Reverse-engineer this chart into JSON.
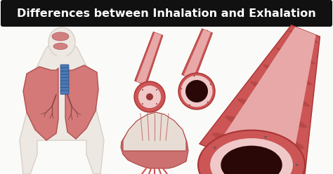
{
  "title": "Differences between Inhalation and Exhalation",
  "title_bg": "#111111",
  "title_color": "#ffffff",
  "title_fontsize": 11.5,
  "bg_color": "#f5f5f5",
  "body_outline": "#d8cfc8",
  "body_fill": "#ede8e2",
  "lung_fill": "#d47878",
  "lung_edge": "#b05050",
  "trachea_fill": "#4a7ab5",
  "trachea_edge": "#2a4a80",
  "tube_red": "#cc5555",
  "tube_dark_red": "#aa3333",
  "tube_pink": "#e8a8a8",
  "tube_pink_inner": "#f0c8c8",
  "tube_lumen_narrow": "#9a3535",
  "tube_lumen_wide": "#2a0808",
  "tube_stripe": "#b04444",
  "muscle_fill": "#cc7070",
  "muscle_edge": "#aa4444",
  "muscle_top": "#e8ddd5",
  "white_bg": "#fafaf8"
}
